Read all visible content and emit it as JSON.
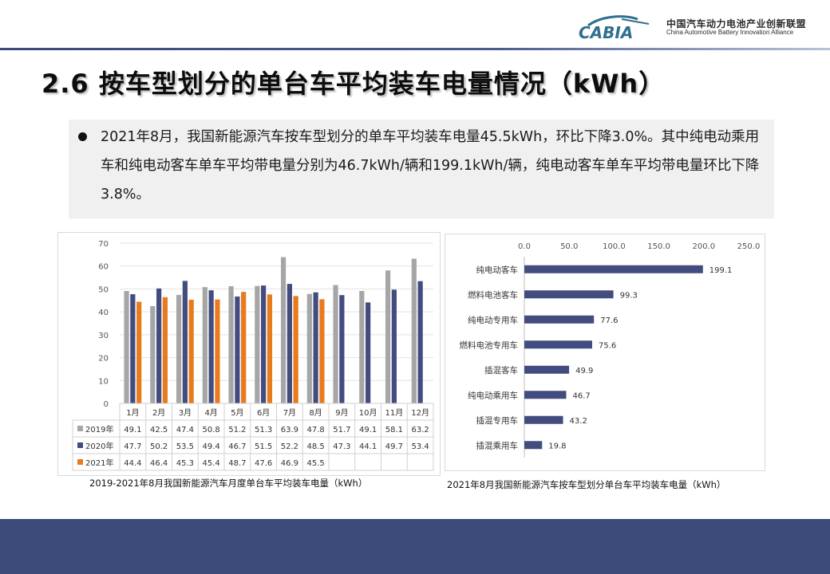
{
  "header": {
    "logo_mark": "CABIA",
    "org_cn": "中国汽车动力电池产业创新联盟",
    "org_en": "China Automotive Battery Innovation Alliance"
  },
  "page_title": "2.6 按车型划分的单台车平均装车电量情况（kWh）",
  "summary": "2021年8月，我国新能源汽车按车型划分的单车平均装车电量45.5kWh，环比下降3.0%。其中纯电动乘用车和纯电动客车单车平均带电量分别为46.7kWh/辆和199.1kWh/辆，纯电动客车单车平均带电量环比下降3.8%。",
  "colors": {
    "series_2019": "#a6a6a6",
    "series_2020": "#434c7e",
    "series_2021": "#e87b1e",
    "hbar": "#434c7e",
    "footer": "#3d4b7b"
  },
  "chart_data": [
    {
      "type": "bar",
      "title": "2019-2021年8月我国新能源汽车月度单台车平均装车电量（kWh）",
      "categories": [
        "1月",
        "2月",
        "3月",
        "4月",
        "5月",
        "6月",
        "7月",
        "8月",
        "9月",
        "10月",
        "11月",
        "12月"
      ],
      "ylim": [
        0,
        70
      ],
      "yticks": [
        0,
        10,
        20,
        30,
        40,
        50,
        60,
        70
      ],
      "grid": true,
      "legend": "table-below",
      "series": [
        {
          "name": "2019年",
          "values": [
            49.1,
            42.5,
            47.4,
            50.8,
            51.2,
            51.3,
            63.9,
            47.8,
            51.7,
            49.1,
            58.1,
            63.2
          ]
        },
        {
          "name": "2020年",
          "values": [
            47.7,
            50.2,
            53.5,
            49.4,
            46.7,
            51.5,
            52.2,
            48.5,
            47.3,
            44.1,
            49.7,
            53.4
          ]
        },
        {
          "name": "2021年",
          "values": [
            44.4,
            46.4,
            45.3,
            45.4,
            48.7,
            47.6,
            46.9,
            45.5,
            null,
            null,
            null,
            null
          ]
        }
      ]
    },
    {
      "type": "bar",
      "orientation": "horizontal",
      "title": "2021年8月我国新能源汽车按车型划分单台车平均装车电量（kWh）",
      "categories": [
        "纯电动客车",
        "燃料电池客车",
        "纯电动专用车",
        "燃料电池专用车",
        "插混客车",
        "纯电动乘用车",
        "插混专用车",
        "插混乘用车"
      ],
      "values": [
        199.1,
        99.3,
        77.6,
        75.6,
        49.9,
        46.7,
        43.2,
        19.8
      ],
      "xlim": [
        0,
        250
      ],
      "xticks": [
        "0.0",
        "50.0",
        "100.0",
        "150.0",
        "200.0",
        "250.0"
      ],
      "axis_position": "top",
      "grid": false
    }
  ]
}
